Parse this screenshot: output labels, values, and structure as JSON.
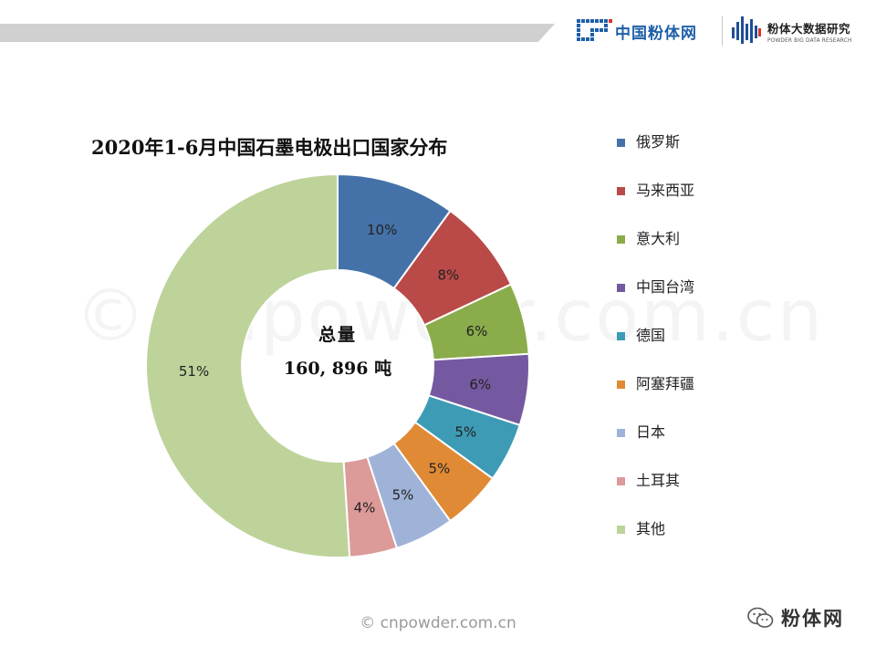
{
  "header": {
    "logo1_text": "中国粉体网",
    "logo2_title": "粉体大数据研究",
    "logo2_subtitle": "POWDER BIG DATA RESEARCH"
  },
  "chart_data": {
    "type": "pie",
    "title": "2020年1-6月中国石墨电极出口国家分布",
    "center_title": "总量",
    "center_value": "160, 896 吨",
    "categories": [
      "俄罗斯",
      "马来西亚",
      "意大利",
      "中国台湾",
      "德国",
      "阿塞拜疆",
      "日本",
      "土耳其",
      "其他"
    ],
    "values": [
      10,
      8,
      6,
      6,
      5,
      5,
      5,
      4,
      51
    ],
    "labels": [
      "10%",
      "8%",
      "6%",
      "6%",
      "5%",
      "5%",
      "5%",
      "4%",
      "51%"
    ],
    "colors": [
      "#4472a8",
      "#b94a48",
      "#8aac4a",
      "#7559a0",
      "#3d9bb5",
      "#e08a35",
      "#9fb3d8",
      "#dc9a99",
      "#bdd39a"
    ],
    "legend_position": "right",
    "unit": "%"
  },
  "watermark": "© cnpowder.com.cn",
  "footer_watermark": "© cnpowder.com.cn",
  "wechat_label": "粉体网"
}
